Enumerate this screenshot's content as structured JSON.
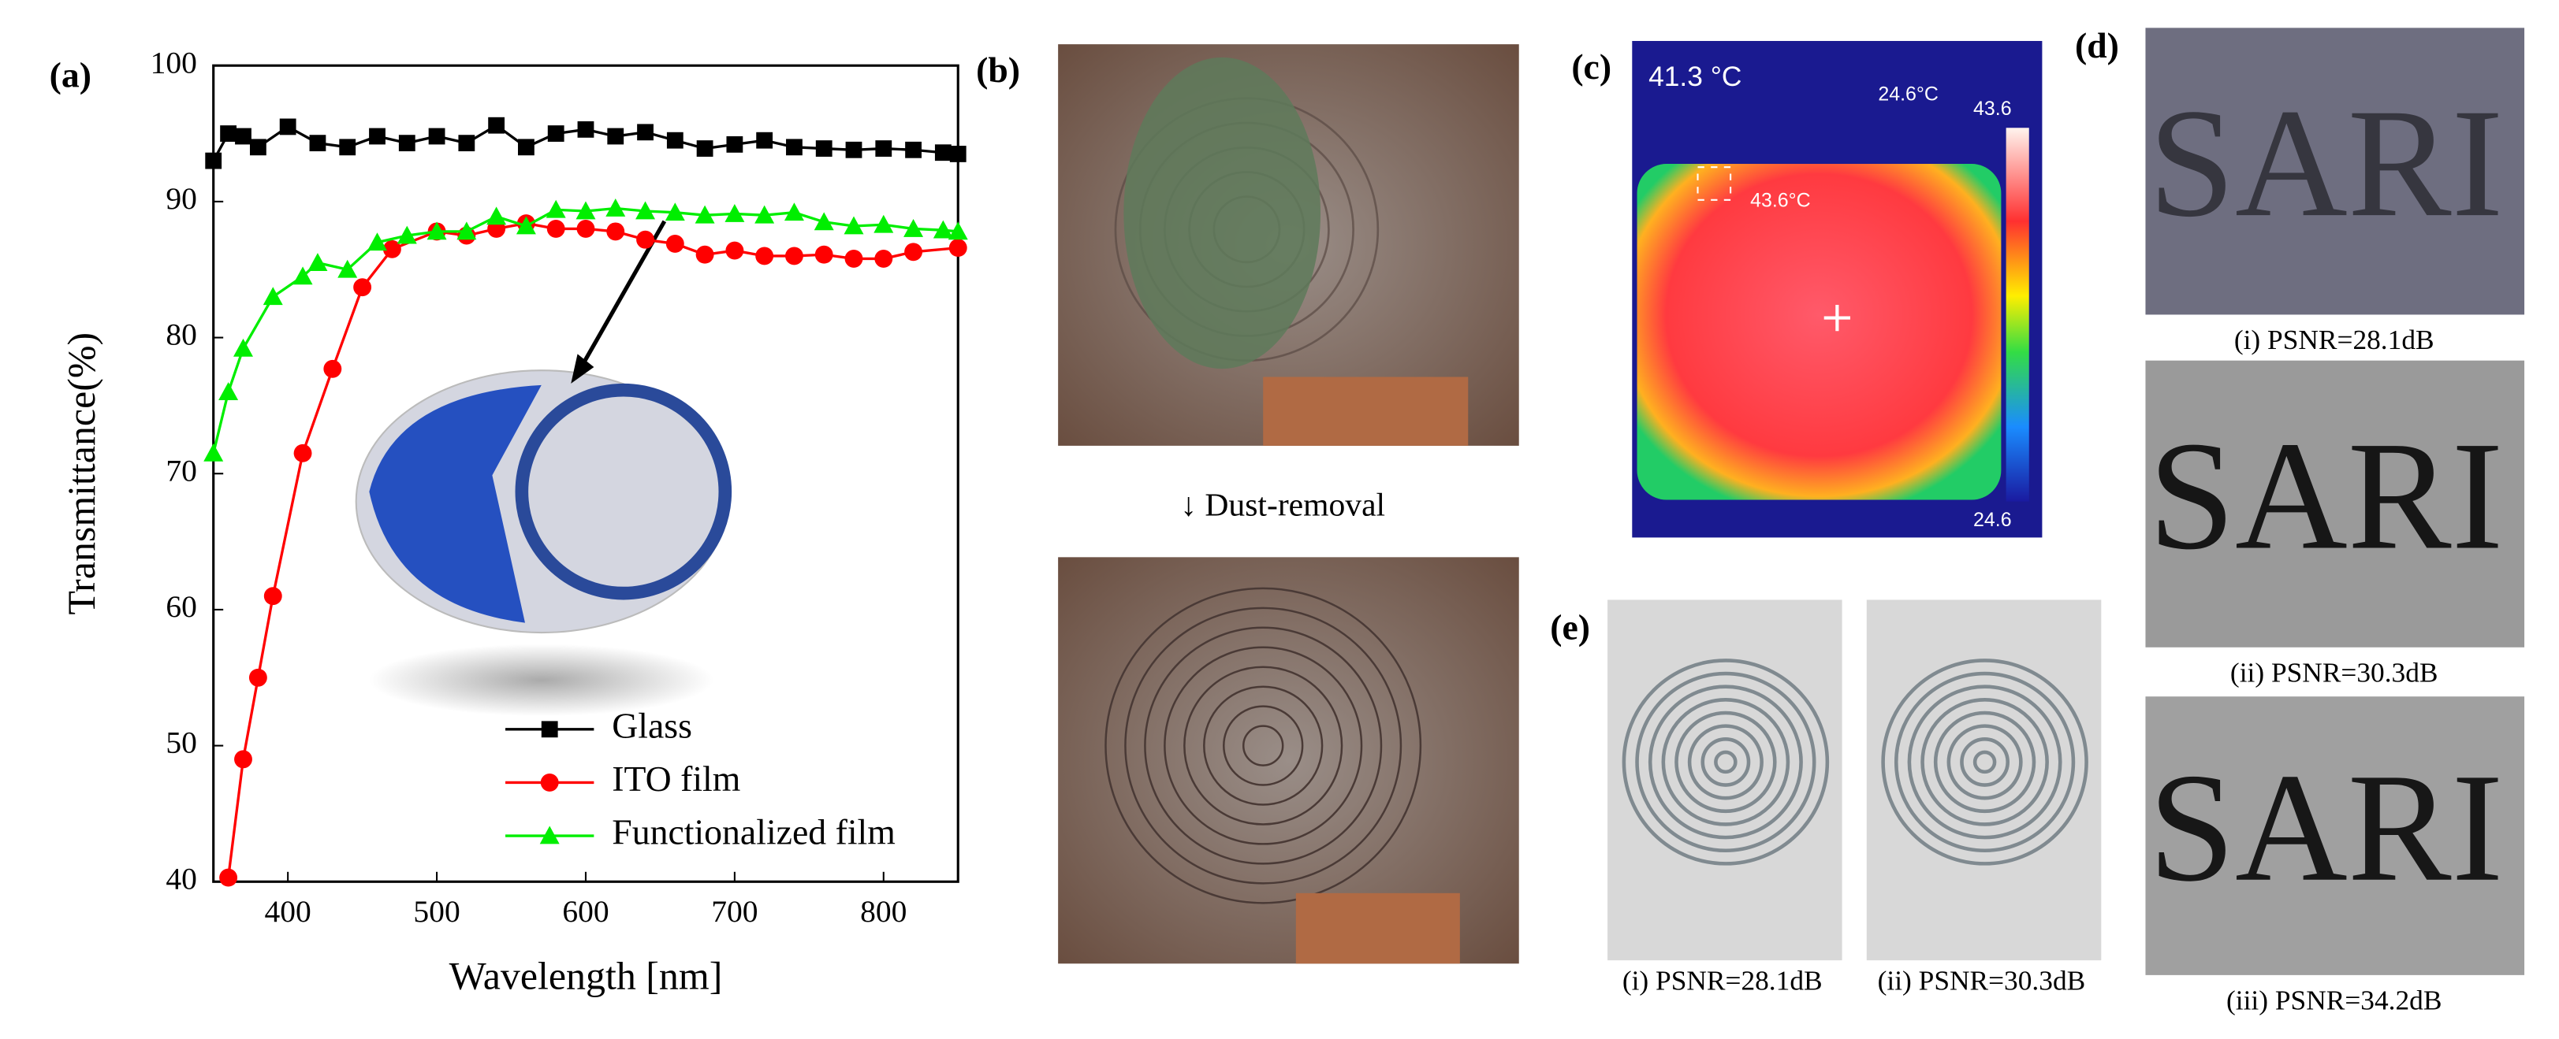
{
  "chart_data": {
    "type": "line",
    "panel_label": "(a)",
    "xlabel": "Wavelength [nm]",
    "ylabel": "Transmittance(%)",
    "xlim": [
      350,
      850
    ],
    "ylim": [
      40,
      100
    ],
    "xticks": [
      400,
      500,
      600,
      700,
      800
    ],
    "yticks": [
      40,
      50,
      60,
      70,
      80,
      90,
      100
    ],
    "legend": "lower right",
    "series": [
      {
        "name": "Glass",
        "color": "#000000",
        "marker": "square",
        "x": [
          350,
          360,
          370,
          380,
          400,
          420,
          440,
          460,
          480,
          500,
          520,
          540,
          560,
          580,
          600,
          620,
          640,
          660,
          680,
          700,
          720,
          740,
          760,
          780,
          800,
          820,
          840,
          850
        ],
        "values": [
          93,
          95,
          94.8,
          94,
          95.5,
          94.3,
          94,
          94.8,
          94.3,
          94.8,
          94.3,
          95.6,
          94,
          95,
          95.3,
          94.8,
          95.1,
          94.5,
          93.9,
          94.2,
          94.5,
          94,
          93.9,
          93.8,
          93.9,
          93.8,
          93.6,
          93.5
        ]
      },
      {
        "name": "ITO film",
        "color": "#ff0000",
        "marker": "circle",
        "x": [
          360,
          370,
          380,
          390,
          410,
          430,
          450,
          470,
          500,
          520,
          540,
          560,
          580,
          600,
          620,
          640,
          660,
          680,
          700,
          720,
          740,
          760,
          780,
          800,
          820,
          850
        ],
        "values": [
          40.3,
          49,
          55,
          61,
          71.5,
          77.7,
          83.7,
          86.5,
          87.8,
          87.5,
          88,
          88.4,
          88,
          88,
          87.8,
          87.2,
          86.9,
          86.1,
          86.4,
          86,
          86,
          86.1,
          85.8,
          85.8,
          86.3,
          86.6
        ]
      },
      {
        "name": "Functionalized film",
        "color": "#00ee00",
        "marker": "triangle",
        "x": [
          350,
          360,
          370,
          390,
          410,
          420,
          440,
          460,
          480,
          500,
          520,
          540,
          560,
          580,
          600,
          620,
          640,
          660,
          680,
          700,
          720,
          740,
          760,
          780,
          800,
          820,
          840,
          850
        ],
        "values": [
          71.5,
          76,
          79.2,
          83,
          84.5,
          85.5,
          85,
          87,
          87.5,
          87.8,
          87.8,
          88.9,
          88.2,
          89.4,
          89.3,
          89.5,
          89.3,
          89.2,
          89,
          89.1,
          89,
          89.2,
          88.5,
          88.2,
          88.3,
          88,
          87.9,
          87.8
        ]
      }
    ]
  },
  "panel_b": {
    "label": "(b)",
    "arrow_text": "↓ Dust-removal"
  },
  "panel_c": {
    "label": "(c)",
    "temperature": "41.3 °C",
    "min_readout": "24.6°C",
    "scale_max": "43.6",
    "spot": "43.6°C",
    "scale_min": "24.6"
  },
  "panel_d": {
    "label": "(d)",
    "captions": [
      "(i) PSNR=28.1dB",
      "(ii) PSNR=30.3dB",
      "(iii) PSNR=34.2dB"
    ],
    "image_text": [
      "SARI",
      "SARI",
      "SARI"
    ]
  },
  "panel_e": {
    "label": "(e)",
    "captions": [
      "(i) PSNR=28.1dB",
      "(ii) PSNR=30.3dB"
    ]
  }
}
